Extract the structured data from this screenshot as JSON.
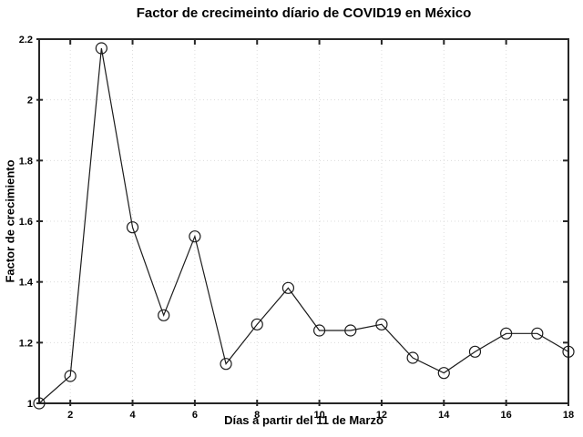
{
  "figure": {
    "title": "Factor de crecimeinto díario de COVID19 en México",
    "xlabel": "Días a partir del 11 de Marzo",
    "ylabel": "Factor de crecimiento"
  },
  "chart_data": {
    "type": "line",
    "title": "Factor de crecimeinto díario de COVID19 en México",
    "xlabel": "Días a partir del 11 de Marzo",
    "ylabel": "Factor de crecimiento",
    "x": [
      1,
      2,
      3,
      4,
      5,
      6,
      7,
      8,
      9,
      10,
      11,
      12,
      13,
      14,
      15,
      16,
      17,
      18
    ],
    "y": [
      1.0,
      1.09,
      2.17,
      1.58,
      1.29,
      1.55,
      1.13,
      1.26,
      1.38,
      1.24,
      1.24,
      1.26,
      1.15,
      1.1,
      1.17,
      1.23,
      1.23,
      1.17
    ],
    "xlim": [
      1,
      18
    ],
    "ylim": [
      1,
      2.2
    ],
    "xticks": [
      2,
      4,
      6,
      8,
      10,
      12,
      14,
      16,
      18
    ],
    "xtick_labels": [
      "2",
      "4",
      "6",
      "8",
      "10",
      "12",
      "14",
      "16",
      "18"
    ],
    "yticks": [
      1,
      1.2,
      1.4,
      1.6,
      1.8,
      2,
      2.2
    ],
    "ytick_labels": [
      "1",
      "1.2",
      "1.4",
      "1.6",
      "1.8",
      "2",
      "2.2"
    ],
    "grid": "dotted",
    "legend": "none",
    "marker": "open-circle",
    "line_style": "solid",
    "colors": {
      "line": "#1a1a1a",
      "marker": "#1a1a1a",
      "axis_frame": "#262626",
      "grid": "#dcdcdc",
      "background": "#ffffff",
      "text": "#000000"
    }
  }
}
